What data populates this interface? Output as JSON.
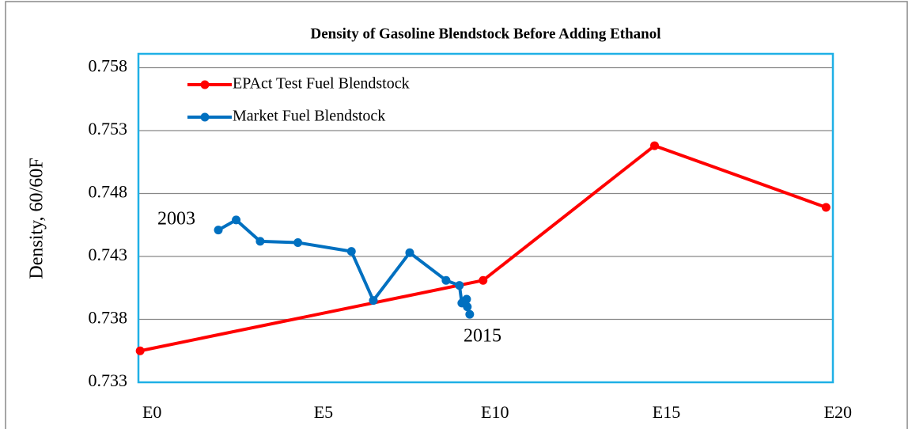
{
  "chart_data": {
    "type": "line",
    "title": "Density of Gasoline Blendstock Before Adding Ethanol",
    "y_label": "Density, 60/60F",
    "annotations": [
      "2003",
      "2015"
    ],
    "xlim": [
      -0.05,
      20.2
    ],
    "xticks": [
      {
        "value": 0,
        "label": "E0"
      },
      {
        "value": 5,
        "label": "E5"
      },
      {
        "value": 10,
        "label": "E10"
      },
      {
        "value": 15,
        "label": "E15"
      },
      {
        "value": 20,
        "label": "E20"
      }
    ],
    "ylim": [
      0.733,
      0.7591
    ],
    "yticks": [
      0.733,
      0.738,
      0.743,
      0.748,
      0.753,
      0.758
    ],
    "grid": true,
    "legend": "upper left",
    "series": [
      {
        "name": "EPAct Test Fuel Blendstock",
        "color": "#ff0000",
        "x": [
          0,
          10,
          15,
          20
        ],
        "values": [
          0.7355,
          0.7411,
          0.7518,
          0.7469
        ]
      },
      {
        "name": "Market Fuel Blendstock",
        "color": "#0070c0",
        "x": [
          2.28,
          2.8,
          3.5,
          4.6,
          6.16,
          6.8,
          7.86,
          8.92,
          9.31,
          9.38,
          9.52,
          9.54,
          9.61
        ],
        "values": [
          0.7451,
          0.7459,
          0.7442,
          0.7441,
          0.7434,
          0.7395,
          0.7433,
          0.7411,
          0.7407,
          0.7393,
          0.7396,
          0.739,
          0.7384
        ]
      }
    ]
  }
}
